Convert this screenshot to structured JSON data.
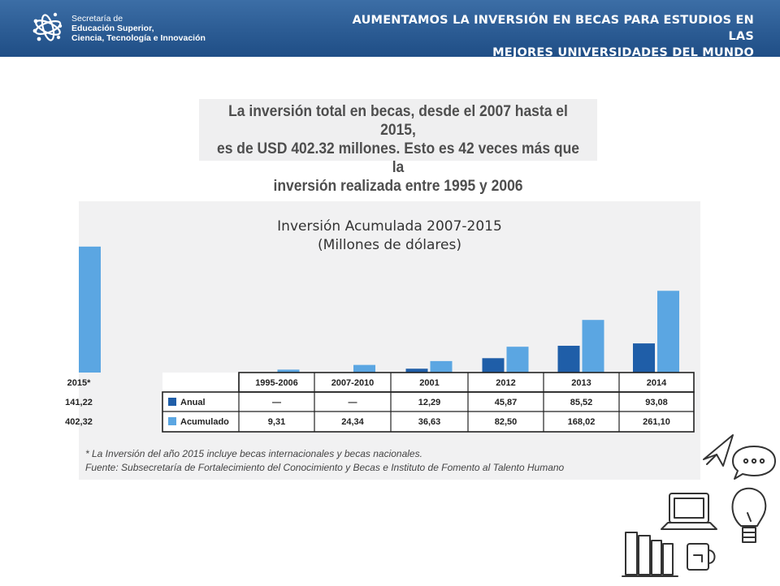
{
  "header": {
    "org_line1": "Secretaría de",
    "org_line2": "Educación Superior,",
    "org_line3": "Ciencia, Tecnología e Innovación",
    "title_line1": "AUMENTAMOS LA INVERSIÓN EN BECAS PARA ESTUDIOS EN LAS",
    "title_line2": "MEJORES UNIVERSIDADES DEL MUNDO",
    "bg_color": "#2a5a92"
  },
  "intro": {
    "line1": "La inversión total en becas, desde el 2007 hasta el 2015,",
    "line2": "es de USD 402.32 millones. Esto es 42 veces más que la",
    "line3": "inversión realizada entre 1995 y 2006"
  },
  "chart_data": {
    "type": "bar",
    "title": "Inversión Acumulada 2007-2015",
    "subtitle": "(Millones de dólares)",
    "categories": [
      "1995-2006",
      "2007-2010",
      "2001",
      "2012",
      "2013",
      "2014",
      "2015*"
    ],
    "series": [
      {
        "name": "Anual",
        "color": "#1f5ea8",
        "values": [
          null,
          null,
          12.29,
          45.87,
          85.52,
          93.08,
          141.22
        ],
        "labels": [
          "—",
          "—",
          "12,29",
          "45,87",
          "85,52",
          "93,08",
          "141,22"
        ]
      },
      {
        "name": "Acumulado",
        "color": "#5ba6e2",
        "values": [
          9.31,
          24.34,
          36.63,
          82.5,
          168.02,
          261.1,
          402.32
        ],
        "labels": [
          "9,31",
          "24,34",
          "36,63",
          "82,50",
          "168,02",
          "261,10",
          "402,32"
        ]
      }
    ],
    "ylim": [
      0,
      420
    ],
    "legend": "table-left",
    "grid": false
  },
  "footnote": {
    "line1": "* La Inversión del año 2015 incluye becas internacionales y becas nacionales.",
    "line2": "Fuente: Subsecretaría de Fortalecimiento del Conocimiento y Becas e Instituto de Fomento al Talento Humano"
  },
  "decor": {
    "icons": [
      "cursor-arrow-icon",
      "speech-bubble-icon",
      "laptop-icon",
      "lightbulb-icon",
      "books-icon",
      "mug-icon"
    ]
  }
}
